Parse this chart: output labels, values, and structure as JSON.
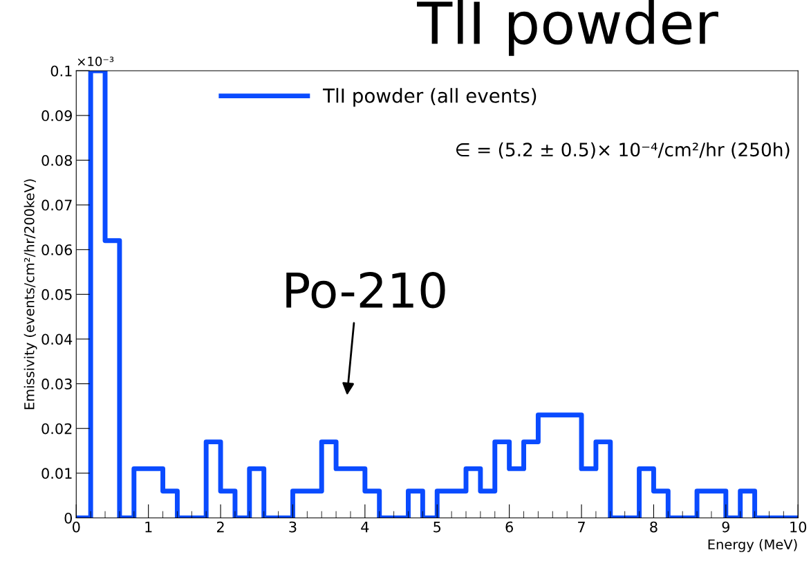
{
  "chart_data": {
    "type": "histogram",
    "title": "TlI powder",
    "xlabel": "Energy (MeV)",
    "ylabel": "Emissivity (events/cm²/hr/200keV)",
    "bins": [
      0,
      0.2,
      0.4,
      0.6,
      0.8,
      1.0,
      1.2,
      1.4,
      1.6,
      1.8,
      2.0,
      2.2,
      2.4,
      2.6,
      2.8,
      3.0,
      3.2,
      3.4,
      3.6,
      3.8,
      4.0,
      4.2,
      4.4,
      4.6,
      4.8,
      5.0,
      5.2,
      5.4,
      5.6,
      5.8,
      6.0,
      6.2,
      6.4,
      6.6,
      6.8,
      7.0,
      7.2,
      7.4,
      7.6,
      7.8,
      8.0,
      8.2,
      8.4,
      8.6,
      8.8,
      9.0,
      9.2,
      9.4,
      9.6,
      9.8,
      10.0
    ],
    "series": [
      {
        "name": "TlI powder (all events)",
        "color": "#0a4bff",
        "values": [
          0,
          0.1,
          0.062,
          0,
          0.011,
          0.011,
          0.006,
          0,
          0,
          0.017,
          0.006,
          0,
          0.011,
          0,
          0,
          0.006,
          0.006,
          0.017,
          0.011,
          0.011,
          0.006,
          0,
          0,
          0.006,
          0,
          0.006,
          0.006,
          0.011,
          0.006,
          0.017,
          0.011,
          0.017,
          0.023,
          0.023,
          0.023,
          0.011,
          0.017,
          0,
          0,
          0.011,
          0.006,
          0,
          0,
          0.006,
          0.006,
          0,
          0.006,
          0,
          0,
          0
        ]
      }
    ],
    "xlim": [
      0,
      10
    ],
    "xticks": [
      0,
      1,
      2,
      3,
      4,
      5,
      6,
      7,
      8,
      9,
      10
    ],
    "ylim": [
      0,
      0.1
    ],
    "yticks": [
      0,
      0.01,
      0.02,
      0.03,
      0.04,
      0.05,
      0.06,
      0.07,
      0.08,
      0.09,
      0.1
    ],
    "legend": "top",
    "grid": false,
    "annotations": [
      "×10⁻³",
      "∈ = (5.2 ± 0.5)× 10⁻⁴/cm²/hr (250h)",
      "Po-210"
    ]
  }
}
